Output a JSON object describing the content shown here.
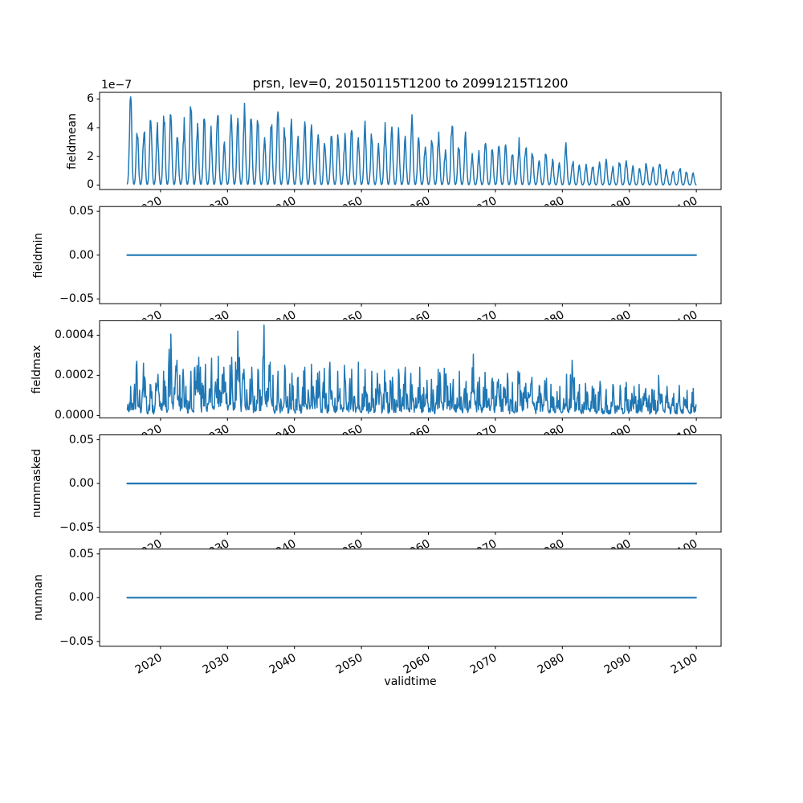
{
  "figure": {
    "title": "prsn, lev=0, 20150115T1200 to 20991215T1200",
    "xlabel": "validtime",
    "line_color": "#1f77b4",
    "spine_color": "#000000",
    "background": "#ffffff"
  },
  "chart_data": {
    "type": "line",
    "title": "prsn, lev=0, 20150115T1200 to 20991215T1200",
    "xlabel": "validtime",
    "x_start_year": 2015.042,
    "x_end_year": 2099.958,
    "points_per_year": 12,
    "xlim": [
      2010.9,
      2103.7
    ],
    "x_ticks": [
      2020,
      2030,
      2040,
      2050,
      2060,
      2070,
      2080,
      2090,
      2100
    ],
    "x_tick_labels": [
      "2020",
      "2030",
      "2040",
      "2050",
      "2060",
      "2070",
      "2080",
      "2090",
      "2100"
    ],
    "grid": false,
    "legend": "none",
    "noise_seed": 42,
    "subplots": [
      {
        "ylabel": "fieldmean",
        "kind": "seasonal",
        "unit_scale": "1e-7",
        "offset_label": "1e−7",
        "ylim": [
          -0.31,
          6.46
        ],
        "ytick_values": [
          0,
          2,
          4,
          6
        ],
        "ytick_labels": [
          "0",
          "2",
          "4",
          "6"
        ],
        "seasonal_profile": [
          0.012,
          0.04,
          0.12,
          0.32,
          0.62,
          0.88,
          1.0,
          0.84,
          0.52,
          0.24,
          0.09,
          0.018
        ],
        "annual_peaks": [
          6.15,
          3.6,
          3.7,
          4.5,
          4.35,
          4.8,
          4.9,
          3.3,
          4.7,
          5.45,
          4.3,
          4.6,
          4.1,
          4.85,
          3.0,
          4.9,
          4.65,
          5.7,
          4.6,
          4.5,
          3.3,
          4.2,
          5.1,
          4.0,
          4.6,
          3.4,
          4.4,
          4.2,
          3.5,
          2.9,
          3.4,
          3.5,
          3.6,
          3.8,
          3.3,
          4.45,
          3.55,
          2.9,
          4.35,
          4.05,
          4.0,
          3.4,
          4.9,
          3.3,
          2.65,
          3.1,
          3.7,
          2.45,
          4.1,
          2.6,
          3.7,
          2.2,
          2.4,
          2.9,
          2.45,
          2.7,
          2.8,
          2.1,
          3.3,
          2.6,
          2.2,
          1.7,
          2.15,
          1.8,
          1.55,
          2.95,
          1.65,
          1.4,
          1.45,
          1.25,
          1.6,
          1.8,
          1.3,
          1.55,
          1.7,
          1.35,
          1.15,
          1.5,
          1.25,
          1.45,
          1.1,
          0.95,
          1.15,
          0.9,
          0.85
        ]
      },
      {
        "ylabel": "fieldmin",
        "kind": "constant",
        "value": 0.0,
        "ylim": [
          -0.0555,
          0.0555
        ],
        "ytick_values": [
          0.05,
          0.0,
          -0.05
        ],
        "ytick_labels": [
          "0.05",
          "0.00",
          "−0.05"
        ]
      },
      {
        "ylabel": "fieldmax",
        "kind": "noisy",
        "unit_scale": "1e-4",
        "ylim": [
          -0.12,
          4.72
        ],
        "ytick_values": [
          0,
          2,
          4
        ],
        "ytick_labels": [
          "0.0000",
          "0.0002",
          "0.0004"
        ],
        "seasonal_profile": [
          0.35,
          0.4,
          0.55,
          0.7,
          0.85,
          1.0,
          0.98,
          0.9,
          0.75,
          0.6,
          0.45,
          0.35
        ],
        "annual_peaks": [
          1.45,
          2.7,
          2.6,
          1.55,
          2.05,
          2.2,
          4.05,
          2.75,
          2.3,
          2.2,
          2.9,
          2.55,
          2.85,
          2.95,
          2.4,
          2.9,
          4.2,
          2.3,
          2.4,
          2.3,
          4.5,
          2.65,
          2.2,
          2.5,
          2.1,
          1.9,
          2.4,
          2.55,
          2.2,
          2.35,
          2.65,
          2.2,
          2.5,
          2.3,
          2.65,
          2.3,
          2.2,
          2.1,
          2.25,
          1.9,
          2.3,
          2.4,
          2.1,
          2.4,
          1.75,
          1.8,
          2.3,
          2.35,
          1.8,
          2.2,
          1.7,
          3.05,
          1.9,
          2.15,
          1.85,
          1.8,
          2.1,
          1.65,
          2.2,
          1.6,
          1.9,
          1.5,
          1.85,
          1.55,
          1.45,
          2.05,
          2.75,
          1.55,
          1.6,
          1.45,
          1.7,
          1.3,
          1.55,
          1.5,
          1.65,
          1.45,
          1.55,
          1.35,
          1.3,
          2.0,
          1.45,
          1.1,
          1.5,
          1.25,
          1.35
        ]
      },
      {
        "ylabel": "nummasked",
        "kind": "constant",
        "value": 0.0,
        "ylim": [
          -0.0555,
          0.0555
        ],
        "ytick_values": [
          0.05,
          0.0,
          -0.05
        ],
        "ytick_labels": [
          "0.05",
          "0.00",
          "−0.05"
        ]
      },
      {
        "ylabel": "numnan",
        "kind": "constant",
        "value": 0.0,
        "ylim": [
          -0.0555,
          0.0555
        ],
        "ytick_values": [
          0.05,
          0.0,
          -0.05
        ],
        "ytick_labels": [
          "0.05",
          "0.00",
          "−0.05"
        ]
      }
    ]
  }
}
